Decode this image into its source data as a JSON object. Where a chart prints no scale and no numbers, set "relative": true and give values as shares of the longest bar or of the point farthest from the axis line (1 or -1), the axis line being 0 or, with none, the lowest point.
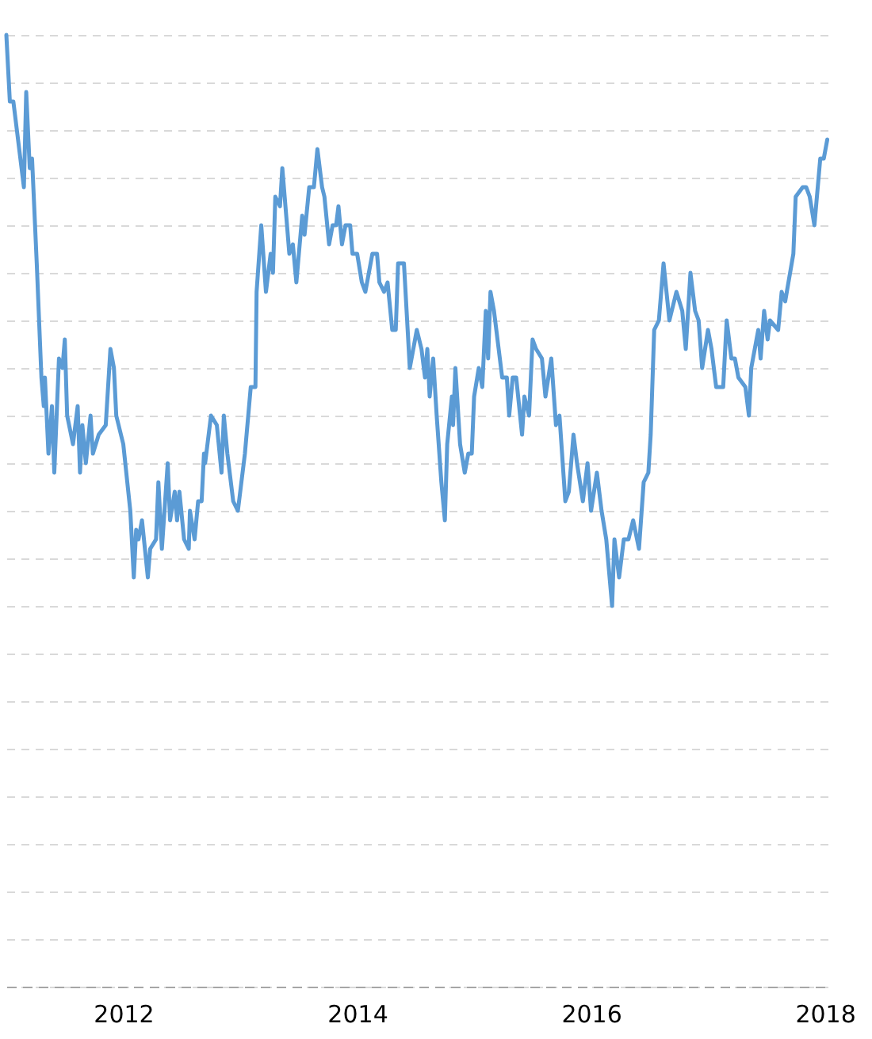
{
  "chart_data": {
    "type": "line",
    "relative": true,
    "grid": "y",
    "xlim": [
      2011,
      2018.05
    ],
    "xticks": [
      2012,
      2014,
      2016,
      2018
    ],
    "x": [
      2011.0,
      2011.03,
      2011.06,
      2011.09,
      2011.12,
      2011.15,
      2011.17,
      2011.2,
      2011.22,
      2011.26,
      2011.3,
      2011.32,
      2011.33,
      2011.36,
      2011.39,
      2011.41,
      2011.45,
      2011.48,
      2011.5,
      2011.52,
      2011.57,
      2011.61,
      2011.63,
      2011.65,
      2011.68,
      2011.72,
      2011.74,
      2011.79,
      2011.85,
      2011.89,
      2011.92,
      2011.94,
      2012.0,
      2012.06,
      2012.09,
      2012.11,
      2012.13,
      2012.16,
      2012.21,
      2012.23,
      2012.28,
      2012.3,
      2012.33,
      2012.38,
      2012.4,
      2012.44,
      2012.46,
      2012.48,
      2012.52,
      2012.56,
      2012.57,
      2012.61,
      2012.64,
      2012.67,
      2012.69,
      2012.7,
      2012.75,
      2012.8,
      2012.84,
      2012.86,
      2012.89,
      2012.94,
      2012.98,
      2013.04,
      2013.09,
      2013.13,
      2013.14,
      2013.18,
      2013.22,
      2013.26,
      2013.28,
      2013.3,
      2013.34,
      2013.36,
      2013.38,
      2013.42,
      2013.45,
      2013.48,
      2013.53,
      2013.55,
      2013.59,
      2013.63,
      2013.66,
      2013.7,
      2013.72,
      2013.76,
      2013.79,
      2013.82,
      2013.84,
      2013.87,
      2013.9,
      2013.94,
      2013.96,
      2014.0,
      2014.04,
      2014.07,
      2014.13,
      2014.17,
      2014.19,
      2014.23,
      2014.26,
      2014.3,
      2014.33,
      2014.35,
      2014.4,
      2014.45,
      2014.51,
      2014.55,
      2014.58,
      2014.6,
      2014.62,
      2014.65,
      2014.68,
      2014.72,
      2014.75,
      2014.77,
      2014.81,
      2014.82,
      2014.84,
      2014.88,
      2014.92,
      2014.95,
      2014.98,
      2015.0,
      2015.04,
      2015.07,
      2015.1,
      2015.12,
      2015.14,
      2015.17,
      2015.24,
      2015.28,
      2015.3,
      2015.33,
      2015.36,
      2015.41,
      2015.43,
      2015.47,
      2015.5,
      2015.53,
      2015.58,
      2015.61,
      2015.66,
      2015.7,
      2015.73,
      2015.78,
      2015.81,
      2015.85,
      2015.88,
      2015.93,
      2015.97,
      2016.0,
      2016.05,
      2016.09,
      2016.13,
      2016.18,
      2016.2,
      2016.24,
      2016.28,
      2016.32,
      2016.36,
      2016.41,
      2016.45,
      2016.49,
      2016.51,
      2016.54,
      2016.58,
      2016.62,
      2016.67,
      2016.73,
      2016.78,
      2016.81,
      2016.85,
      2016.89,
      2016.92,
      2016.95,
      2017.0,
      2017.03,
      2017.07,
      2017.13,
      2017.16,
      2017.2,
      2017.23,
      2017.26,
      2017.32,
      2017.35,
      2017.37,
      2017.43,
      2017.45,
      2017.48,
      2017.51,
      2017.53,
      2017.6,
      2017.63,
      2017.66,
      2017.73,
      2017.75,
      2017.81,
      2017.84,
      2017.87,
      2017.91,
      2017.96,
      2017.99,
      2018.02
    ],
    "series": [
      {
        "color": "#5b9bd5",
        "values": [
          1.0,
          0.93,
          0.93,
          0.9,
          0.87,
          0.84,
          0.94,
          0.86,
          0.87,
          0.76,
          0.64,
          0.61,
          0.64,
          0.56,
          0.61,
          0.54,
          0.66,
          0.65,
          0.68,
          0.6,
          0.57,
          0.61,
          0.54,
          0.59,
          0.55,
          0.6,
          0.56,
          0.58,
          0.59,
          0.67,
          0.65,
          0.6,
          0.57,
          0.5,
          0.43,
          0.48,
          0.47,
          0.49,
          0.43,
          0.46,
          0.47,
          0.53,
          0.46,
          0.55,
          0.49,
          0.52,
          0.49,
          0.52,
          0.47,
          0.46,
          0.5,
          0.47,
          0.51,
          0.51,
          0.56,
          0.55,
          0.6,
          0.59,
          0.54,
          0.6,
          0.56,
          0.51,
          0.5,
          0.56,
          0.63,
          0.63,
          0.73,
          0.8,
          0.73,
          0.77,
          0.75,
          0.83,
          0.82,
          0.86,
          0.83,
          0.77,
          0.78,
          0.74,
          0.81,
          0.79,
          0.84,
          0.84,
          0.88,
          0.84,
          0.83,
          0.78,
          0.8,
          0.8,
          0.82,
          0.78,
          0.8,
          0.8,
          0.77,
          0.77,
          0.74,
          0.73,
          0.77,
          0.77,
          0.74,
          0.73,
          0.74,
          0.69,
          0.69,
          0.76,
          0.76,
          0.65,
          0.69,
          0.67,
          0.64,
          0.67,
          0.62,
          0.66,
          0.6,
          0.53,
          0.49,
          0.57,
          0.62,
          0.59,
          0.65,
          0.57,
          0.54,
          0.56,
          0.56,
          0.62,
          0.65,
          0.63,
          0.71,
          0.66,
          0.73,
          0.71,
          0.64,
          0.64,
          0.6,
          0.64,
          0.64,
          0.58,
          0.62,
          0.6,
          0.68,
          0.67,
          0.66,
          0.62,
          0.66,
          0.59,
          0.6,
          0.51,
          0.52,
          0.58,
          0.55,
          0.51,
          0.55,
          0.5,
          0.54,
          0.5,
          0.47,
          0.4,
          0.47,
          0.43,
          0.47,
          0.47,
          0.49,
          0.46,
          0.53,
          0.54,
          0.58,
          0.69,
          0.7,
          0.76,
          0.7,
          0.73,
          0.71,
          0.67,
          0.75,
          0.71,
          0.7,
          0.65,
          0.69,
          0.67,
          0.63,
          0.63,
          0.7,
          0.66,
          0.66,
          0.64,
          0.63,
          0.6,
          0.65,
          0.69,
          0.66,
          0.71,
          0.68,
          0.7,
          0.69,
          0.73,
          0.72,
          0.77,
          0.83,
          0.84,
          0.84,
          0.83,
          0.8,
          0.87,
          0.87,
          0.89
        ]
      }
    ]
  }
}
